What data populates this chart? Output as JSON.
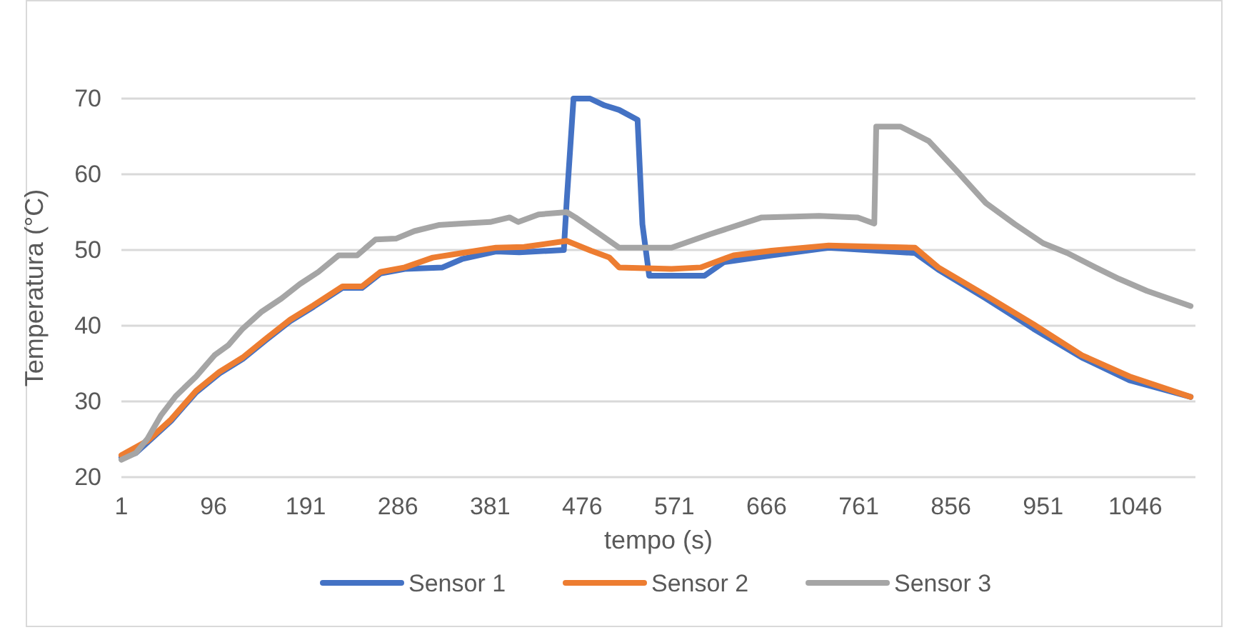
{
  "chart_data": {
    "type": "line",
    "xlabel": "tempo (s)",
    "ylabel": "Temperatura (°C)",
    "xlim": [
      1,
      1108
    ],
    "xticks": [
      1,
      96,
      191,
      286,
      381,
      476,
      571,
      666,
      761,
      856,
      951,
      1046
    ],
    "ylim": [
      20,
      70
    ],
    "yticks": [
      20,
      30,
      40,
      50,
      60,
      70
    ],
    "grid": "y",
    "legend": "bottom",
    "marker": "none",
    "line_style": "solid",
    "series": [
      {
        "name": "Sensor 1",
        "color": "#4472c4",
        "x": [
          1,
          16,
          28,
          52,
          78,
          102,
          126,
          150,
          175,
          199,
          229,
          249,
          268,
          293,
          332,
          352,
          387,
          411,
          457,
          460,
          467,
          484,
          499,
          514,
          533,
          538,
          545,
          602,
          622,
          671,
          730,
          819,
          843,
          892,
          941,
          991,
          1040,
          1103
        ],
        "values": [
          22.6,
          23.2,
          24.6,
          27.4,
          31.2,
          33.7,
          35.6,
          38.1,
          40.6,
          42.5,
          45.0,
          45.0,
          46.9,
          47.5,
          47.7,
          48.8,
          49.8,
          49.7,
          50.0,
          56.5,
          70,
          70,
          69.1,
          68.5,
          67.2,
          53.4,
          46.6,
          46.6,
          48.4,
          49.3,
          50.3,
          49.6,
          47.4,
          43.6,
          39.6,
          35.8,
          32.8,
          30.6
        ]
      },
      {
        "name": "Sensor 2",
        "color": "#ed7d31",
        "x": [
          1,
          28,
          52,
          78,
          102,
          126,
          150,
          175,
          199,
          229,
          249,
          268,
          293,
          322,
          352,
          387,
          416,
          460,
          485,
          504,
          514,
          568,
          598,
          632,
          671,
          730,
          819,
          843,
          892,
          941,
          991,
          1040,
          1103
        ],
        "values": [
          22.9,
          24.8,
          27.6,
          31.4,
          33.9,
          35.8,
          38.3,
          40.8,
          42.7,
          45.2,
          45.2,
          47.1,
          47.7,
          49.0,
          49.6,
          50.3,
          50.4,
          51.2,
          49.9,
          49.0,
          47.7,
          47.5,
          47.7,
          49.3,
          49.9,
          50.6,
          50.3,
          47.7,
          44.0,
          40.2,
          36.1,
          33.3,
          30.6
        ]
      },
      {
        "name": "Sensor 3",
        "color": "#a5a5a5",
        "x": [
          1,
          16,
          28,
          42,
          57,
          78,
          97,
          111,
          126,
          145,
          166,
          185,
          204,
          225,
          244,
          263,
          284,
          303,
          328,
          352,
          381,
          401,
          410,
          431,
          460,
          469,
          494,
          514,
          568,
          608,
          661,
          720,
          760,
          777,
          779,
          804,
          833,
          863,
          892,
          922,
          951,
          976,
          1005,
          1029,
          1058,
          1103
        ],
        "values": [
          22.3,
          23.2,
          25.1,
          28.2,
          30.7,
          33.3,
          36.1,
          37.4,
          39.6,
          41.8,
          43.6,
          45.5,
          47.1,
          49.3,
          49.3,
          51.4,
          51.5,
          52.5,
          53.3,
          53.5,
          53.7,
          54.3,
          53.7,
          54.7,
          55.0,
          54.3,
          52.1,
          50.3,
          50.3,
          52.1,
          54.3,
          54.5,
          54.3,
          53.5,
          66.3,
          66.3,
          64.4,
          60.3,
          56.2,
          53.4,
          50.9,
          49.6,
          47.7,
          46.2,
          44.6,
          42.6
        ]
      }
    ]
  }
}
